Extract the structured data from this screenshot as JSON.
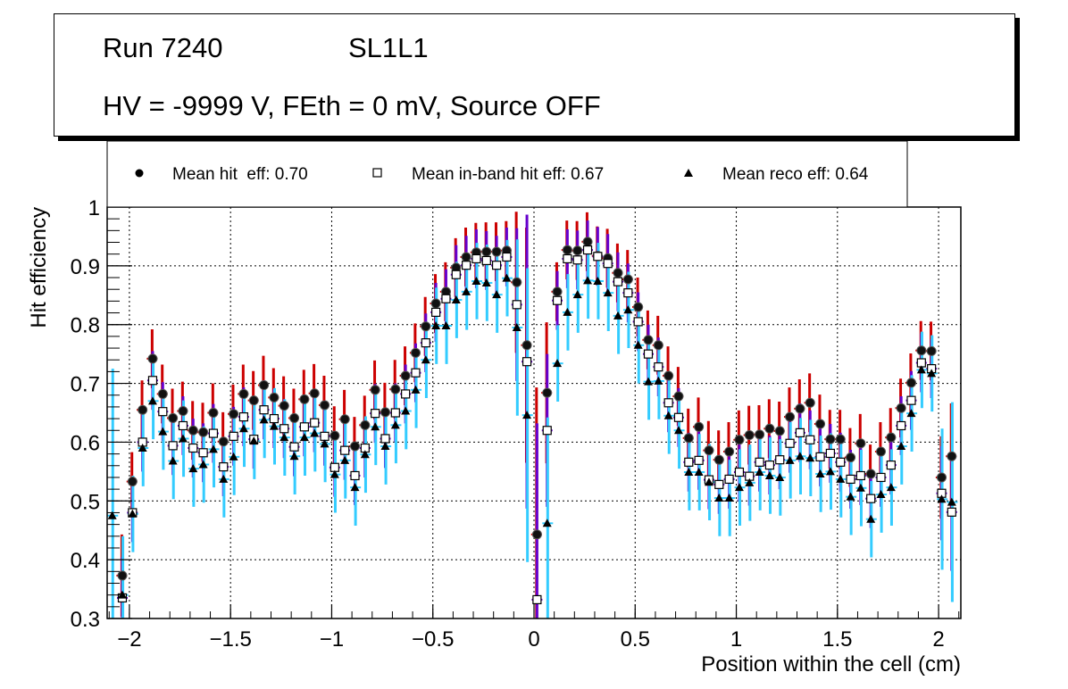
{
  "title_box": {
    "run": "Run 7240",
    "layer": "SL1L1",
    "conditions": "HV = -9999 V, FEth = 0 mV, Source OFF"
  },
  "chart_data": {
    "type": "scatter",
    "title": "",
    "xlabel": "Position within the cell (cm)",
    "ylabel": "Hit efficiency",
    "xlim": [
      -2.11,
      2.11
    ],
    "ylim": [
      0.3,
      1.0
    ],
    "grid": true,
    "legend_position": "top",
    "x_ticks": [
      -2,
      -1.5,
      -1,
      -0.5,
      0,
      0.5,
      1,
      1.5,
      2
    ],
    "x_tick_labels": [
      "−2",
      "−1.5",
      "−1",
      "−0.5",
      "0",
      "0.5",
      "1",
      "1.5",
      "2"
    ],
    "y_ticks": [
      0.3,
      0.4,
      0.5,
      0.6,
      0.7,
      0.8,
      0.9,
      1.0
    ],
    "y_tick_labels": [
      "0.3",
      "0.4",
      "0.5",
      "0.6",
      "0.7",
      "0.8",
      "0.9",
      "1"
    ],
    "x_start": -2.085,
    "x_step": 0.05,
    "series": [
      {
        "name": "Mean hit  eff: 0.70",
        "marker": "circle",
        "error_color": "#cc0000",
        "typical_error": 0.05,
        "error_overrides": {
          "1": 0.07,
          "40": 0.12,
          "41": 0.2,
          "42": 0.25,
          "43": 0.12,
          "82": 0.07,
          "83": 0.09
        },
        "values": [
          null,
          0.373,
          0.533,
          0.655,
          0.742,
          0.682,
          0.641,
          0.653,
          0.62,
          0.617,
          0.65,
          0.601,
          0.648,
          0.682,
          0.671,
          0.697,
          0.676,
          0.662,
          0.641,
          0.673,
          0.683,
          0.663,
          0.611,
          0.639,
          0.593,
          0.629,
          0.689,
          0.651,
          0.69,
          0.713,
          0.752,
          0.797,
          0.836,
          0.856,
          0.897,
          0.915,
          0.923,
          0.924,
          0.924,
          0.926,
          0.872,
          0.765,
          0.443,
          0.684,
          0.856,
          0.927,
          0.926,
          0.941,
          0.917,
          0.913,
          0.888,
          0.877,
          0.83,
          0.774,
          0.765,
          0.713,
          0.678,
          0.607,
          0.626,
          0.586,
          0.57,
          0.584,
          0.604,
          0.612,
          0.613,
          0.623,
          0.619,
          0.643,
          0.657,
          0.667,
          0.631,
          0.605,
          0.605,
          0.574,
          0.598,
          0.546,
          0.584,
          0.608,
          0.658,
          0.701,
          0.756,
          0.755,
          0.54,
          0.576
        ]
      },
      {
        "name": "Mean in-band hit eff: 0.67",
        "marker": "open-square",
        "error_color": "#6600cc",
        "typical_error": 0.05,
        "error_overrides": {
          "1": 0.07,
          "40": 0.13,
          "41": 0.25,
          "42": 0.3,
          "43": 0.13,
          "82": 0.08,
          "83": 0.1
        },
        "values": [
          null,
          0.335,
          0.48,
          0.6,
          0.705,
          0.652,
          0.594,
          0.628,
          0.59,
          0.582,
          0.615,
          0.558,
          0.61,
          0.643,
          0.605,
          0.655,
          0.64,
          0.623,
          0.592,
          0.626,
          0.633,
          0.61,
          0.557,
          0.586,
          0.543,
          0.59,
          0.649,
          0.606,
          0.65,
          0.682,
          0.718,
          0.769,
          0.821,
          0.844,
          0.885,
          0.901,
          0.912,
          0.909,
          0.901,
          0.915,
          0.834,
          0.737,
          0.332,
          0.62,
          0.841,
          0.912,
          0.91,
          0.927,
          0.916,
          0.904,
          0.873,
          0.854,
          0.805,
          0.75,
          0.728,
          0.667,
          0.642,
          0.566,
          0.569,
          0.536,
          0.528,
          0.537,
          0.549,
          0.542,
          0.566,
          0.561,
          0.57,
          0.598,
          0.616,
          0.604,
          0.575,
          0.581,
          0.566,
          0.537,
          0.543,
          0.504,
          0.54,
          0.561,
          0.628,
          0.671,
          0.735,
          0.725,
          0.513,
          0.481
        ]
      },
      {
        "name": "Mean reco eff: 0.64",
        "marker": "triangle",
        "error_color": "#33ccff",
        "typical_error": 0.065,
        "error_overrides": {
          "0": 0.25,
          "1": 0.1,
          "40": 0.15,
          "41": 0.25,
          "43": 0.18,
          "82": 0.12,
          "83": 0.17
        },
        "values": [
          0.475,
          0.34,
          0.478,
          0.59,
          0.67,
          0.618,
          0.568,
          0.606,
          0.555,
          0.562,
          0.588,
          0.537,
          0.575,
          0.623,
          0.602,
          0.638,
          0.627,
          0.608,
          0.576,
          0.608,
          0.615,
          0.597,
          0.545,
          0.569,
          0.523,
          0.579,
          0.626,
          0.593,
          0.629,
          0.653,
          0.689,
          0.74,
          0.798,
          0.798,
          0.842,
          0.856,
          0.874,
          0.871,
          0.851,
          0.879,
          0.795,
          0.646,
          null,
          0.462,
          0.734,
          0.821,
          0.851,
          0.875,
          0.874,
          0.854,
          0.815,
          0.825,
          0.765,
          0.703,
          0.704,
          0.645,
          0.62,
          0.549,
          0.549,
          0.532,
          0.505,
          0.505,
          0.523,
          0.531,
          0.549,
          0.543,
          0.54,
          0.569,
          0.576,
          0.573,
          0.546,
          0.55,
          0.537,
          0.507,
          0.522,
          0.469,
          0.511,
          0.523,
          0.593,
          0.649,
          0.723,
          0.717,
          0.503,
          0.498
        ]
      }
    ]
  }
}
